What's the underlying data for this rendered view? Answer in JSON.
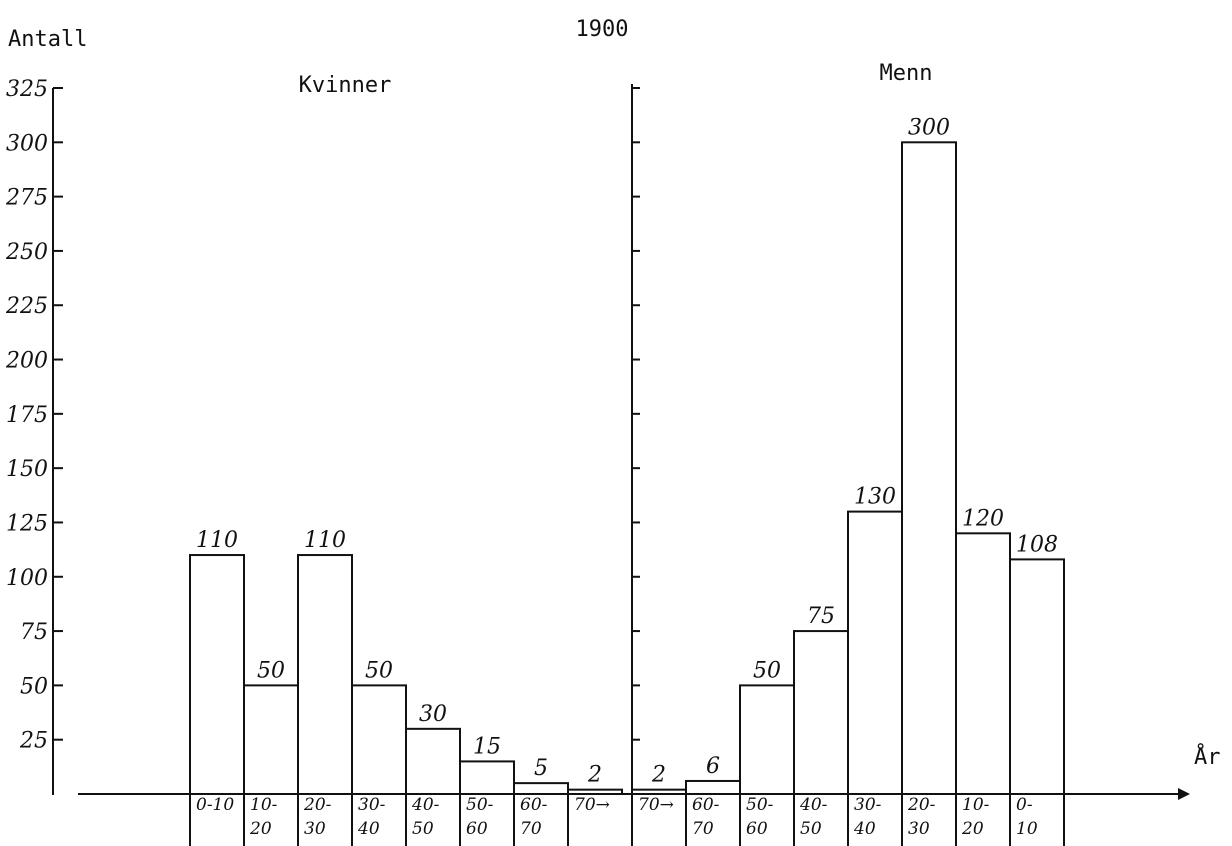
{
  "chart_data": {
    "type": "bar",
    "title": "1900",
    "ylabel": "Antall",
    "xlabel": "År",
    "ylim": [
      0,
      325
    ],
    "yticks": [
      "25",
      "50",
      "75",
      "100",
      "125",
      "150",
      "175",
      "200",
      "225",
      "250",
      "275",
      "300",
      "325"
    ],
    "groups": [
      {
        "name": "Kvinner",
        "categories": [
          [
            "0-10"
          ],
          [
            "10-",
            "20"
          ],
          [
            "20-",
            "30"
          ],
          [
            "30-",
            "40"
          ],
          [
            "40-",
            "50"
          ],
          [
            "50-",
            "60"
          ],
          [
            "60-",
            "70"
          ],
          [
            "70→"
          ]
        ],
        "values": [
          110,
          50,
          110,
          50,
          30,
          15,
          5,
          2
        ],
        "labels": [
          "110",
          "50",
          "110",
          "50",
          "30",
          "15",
          "5",
          "2"
        ]
      },
      {
        "name": "Menn",
        "categories": [
          [
            "70→"
          ],
          [
            "60-",
            "70"
          ],
          [
            "50-",
            "60"
          ],
          [
            "40-",
            "50"
          ],
          [
            "30-",
            "40"
          ],
          [
            "20-",
            "30"
          ],
          [
            "10-",
            "20"
          ],
          [
            "0-",
            "10"
          ]
        ],
        "values": [
          2,
          6,
          50,
          75,
          130,
          300,
          120,
          108
        ],
        "labels": [
          "2",
          "6",
          "50",
          "75",
          "130",
          "300",
          "120",
          "108"
        ]
      }
    ]
  }
}
